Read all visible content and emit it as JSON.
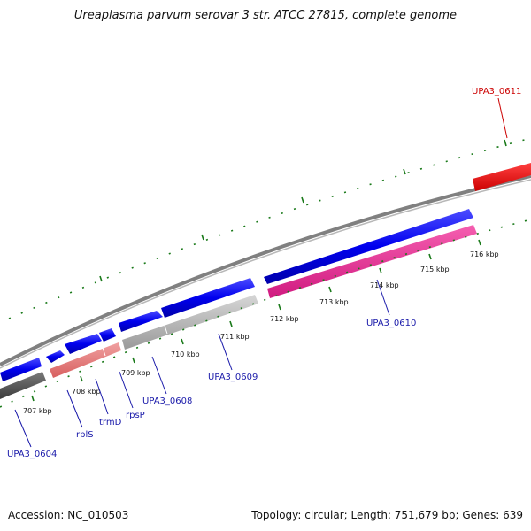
{
  "title": "Ureaplasma parvum serovar 3 str. ATCC 27815, complete genome",
  "accession_text": "Accession: NC_010503",
  "summary_text": "Topology: circular; Length: 751,679 bp; Genes: 639",
  "ticks": [
    {
      "label": "707 kbp"
    },
    {
      "label": "708 kbp"
    },
    {
      "label": "709 kbp"
    },
    {
      "label": "710 kbp"
    },
    {
      "label": "711 kbp"
    },
    {
      "label": "712 kbp"
    },
    {
      "label": "713 kbp"
    },
    {
      "label": "714 kbp"
    },
    {
      "label": "715 kbp"
    },
    {
      "label": "716 kbp"
    }
  ],
  "gene_labels": {
    "upa3_0604": "UPA3_0604",
    "rpls": "rplS",
    "trmd": "trmD",
    "rpsp": "rpsP",
    "upa3_0608": "UPA3_0608",
    "upa3_0609": "UPA3_0609",
    "upa3_0610": "UPA3_0610",
    "upa3_0611": "UPA3_0611"
  },
  "colors": {
    "forward_cds": "#0000ee",
    "backbone": "#808080",
    "tick": "#1a7a1a",
    "label_blue": "#1a1aaa",
    "label_red": "#cc0000",
    "pink": "#e8208c",
    "salmon": "#e88080",
    "gray_feature": "#b0b0b0",
    "dark_feature": "#555555",
    "red_feature": "#ee0000"
  }
}
